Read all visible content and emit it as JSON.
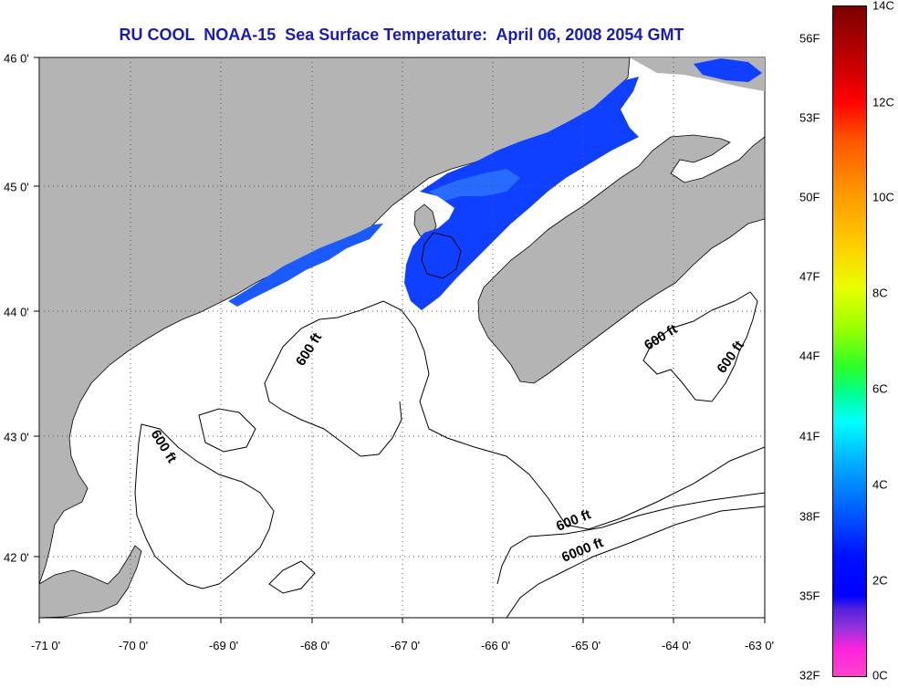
{
  "title": "RU COOL  NOAA-15  Sea Surface Temperature:  April 06, 2008 2054 GMT",
  "map": {
    "lon_labels": [
      "-71 0'",
      "-70 0'",
      "-69 0'",
      "-68 0'",
      "-67 0'",
      "-66 0'",
      "-65 0'",
      "-64 0'",
      "-63 0'"
    ],
    "lat_labels": [
      "46 0'",
      "45 0'",
      "44 0'",
      "43 0'",
      "42 0'"
    ],
    "contour_labels": [
      "600 ft",
      "600 ft",
      "600 ft",
      "600 ft",
      "600 ft",
      "6000 ft"
    ],
    "colors": {
      "land": "#b4b4b4",
      "water_cold": "#1040ff",
      "water_cool": "#2a70ff",
      "coast": "#000000"
    }
  },
  "colorbar": {
    "celsius_labels": [
      "14C",
      "12C",
      "10C",
      "8C",
      "6C",
      "4C",
      "2C",
      "0C"
    ],
    "fahrenheit_labels": [
      "56F",
      "53F",
      "50F",
      "47F",
      "44F",
      "41F",
      "38F",
      "35F",
      "32F"
    ]
  }
}
